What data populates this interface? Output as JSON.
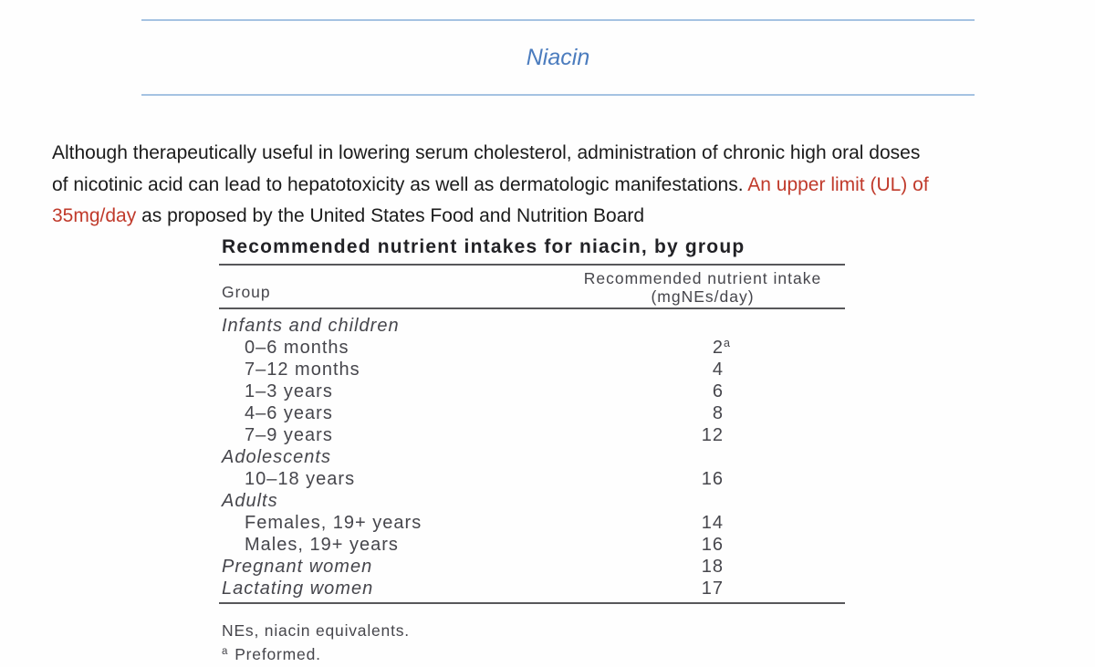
{
  "header": {
    "title": "Niacin"
  },
  "paragraph": {
    "line1": "Although therapeutically useful in lowering serum cholesterol, administration of chronic high oral doses",
    "line2_black": "of nicotinic acid can lead to hepatotoxicity as well as dermatologic manifestations. ",
    "line2_red": "An upper limit (UL) of",
    "line3_red": "35mg/day",
    "line3_black": " as proposed by the United States Food and Nutrition Board"
  },
  "table": {
    "title": "Recommended nutrient intakes for niacin, by group",
    "col1_header": "Group",
    "col2_header_line1": "Recommended nutrient intake",
    "col2_header_line2": "(mgNEs/day)",
    "rows": [
      {
        "label": "Infants and children",
        "italic": true,
        "indent": false,
        "value": ""
      },
      {
        "label": "0–6 months",
        "italic": false,
        "indent": true,
        "value": "2",
        "sup": "a"
      },
      {
        "label": "7–12 months",
        "italic": false,
        "indent": true,
        "value": "4"
      },
      {
        "label": "1–3 years",
        "italic": false,
        "indent": true,
        "value": "6"
      },
      {
        "label": "4–6 years",
        "italic": false,
        "indent": true,
        "value": "8"
      },
      {
        "label": "7–9 years",
        "italic": false,
        "indent": true,
        "value": "12"
      },
      {
        "label": "Adolescents",
        "italic": true,
        "indent": false,
        "value": ""
      },
      {
        "label": "10–18 years",
        "italic": false,
        "indent": true,
        "value": "16"
      },
      {
        "label": "Adults",
        "italic": true,
        "indent": false,
        "value": ""
      },
      {
        "label": "Females, 19+ years",
        "italic": false,
        "indent": true,
        "value": "14"
      },
      {
        "label": "Males, 19+ years",
        "italic": false,
        "indent": true,
        "value": "16"
      },
      {
        "label": "Pregnant women",
        "italic": true,
        "indent": false,
        "value": "18"
      },
      {
        "label": "Lactating women",
        "italic": true,
        "indent": false,
        "value": "17"
      }
    ],
    "footnotes": {
      "line1": "NEs, niacin equivalents.",
      "line2_marker": "a",
      "line2_text": "Preformed."
    }
  },
  "colors": {
    "accent_blue": "#4b7cbe",
    "rule_blue": "#a5c3e2",
    "highlight_red": "#c03a2b",
    "table_text": "#46464c",
    "table_rule": "#57575a"
  }
}
